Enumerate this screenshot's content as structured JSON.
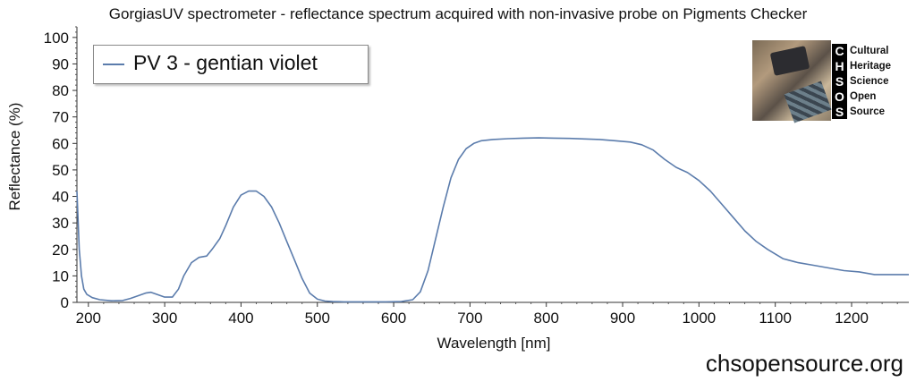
{
  "title": "GorgiasUV spectrometer - reflectance spectrum acquired with non-invasive probe on Pigments Checker",
  "website": "chsopensource.org",
  "logo": {
    "letters": [
      "C",
      "H",
      "S",
      "O",
      "S"
    ],
    "words": [
      "Cultural",
      "Heritage",
      "Science",
      "Open",
      "Source"
    ]
  },
  "chart_data": {
    "type": "line",
    "xlabel": "Wavelength [nm]",
    "ylabel": "Reflectance (%)",
    "xlim": [
      185,
      1275
    ],
    "ylim": [
      0,
      104
    ],
    "xticks": [
      200,
      300,
      400,
      500,
      600,
      700,
      800,
      900,
      1000,
      1100,
      1200
    ],
    "yticks": [
      0,
      10,
      20,
      30,
      40,
      50,
      60,
      70,
      80,
      90,
      100
    ],
    "grid": false,
    "legend_position": "top-left",
    "series": [
      {
        "name": "PV 3 - gentian violet",
        "color": "#5b7cac",
        "x": [
          185,
          188,
          191,
          194,
          198,
          205,
          215,
          230,
          245,
          255,
          265,
          275,
          282,
          290,
          300,
          310,
          318,
          325,
          335,
          345,
          355,
          362,
          372,
          380,
          390,
          400,
          410,
          420,
          430,
          440,
          450,
          460,
          470,
          480,
          490,
          500,
          510,
          520,
          535,
          550,
          570,
          590,
          610,
          625,
          635,
          645,
          655,
          665,
          675,
          685,
          695,
          705,
          715,
          730,
          750,
          770,
          790,
          810,
          830,
          850,
          870,
          890,
          910,
          925,
          940,
          955,
          970,
          985,
          1000,
          1015,
          1030,
          1045,
          1060,
          1075,
          1090,
          1110,
          1130,
          1150,
          1170,
          1190,
          1210,
          1230,
          1250,
          1275
        ],
        "y": [
          42,
          20,
          10,
          5,
          3,
          1.8,
          1,
          0.6,
          0.7,
          1.5,
          2.5,
          3.5,
          3.8,
          3,
          2,
          2,
          5,
          10,
          15,
          17,
          17.5,
          20,
          24,
          29,
          36,
          40.5,
          42,
          42,
          40,
          36,
          30,
          23,
          16,
          9,
          3.5,
          1.2,
          0.5,
          0.3,
          0.2,
          0.2,
          0.2,
          0.2,
          0.3,
          1,
          4,
          12,
          24,
          36,
          47,
          54,
          58,
          60,
          61,
          61.5,
          61.8,
          62,
          62.1,
          62,
          61.9,
          61.7,
          61.5,
          61,
          60.5,
          59.5,
          57.5,
          54,
          51,
          49,
          46,
          42,
          37,
          32,
          27,
          23,
          20,
          16.5,
          15,
          14,
          13,
          12,
          11.5,
          10.5,
          10.5,
          10.5
        ]
      }
    ]
  }
}
